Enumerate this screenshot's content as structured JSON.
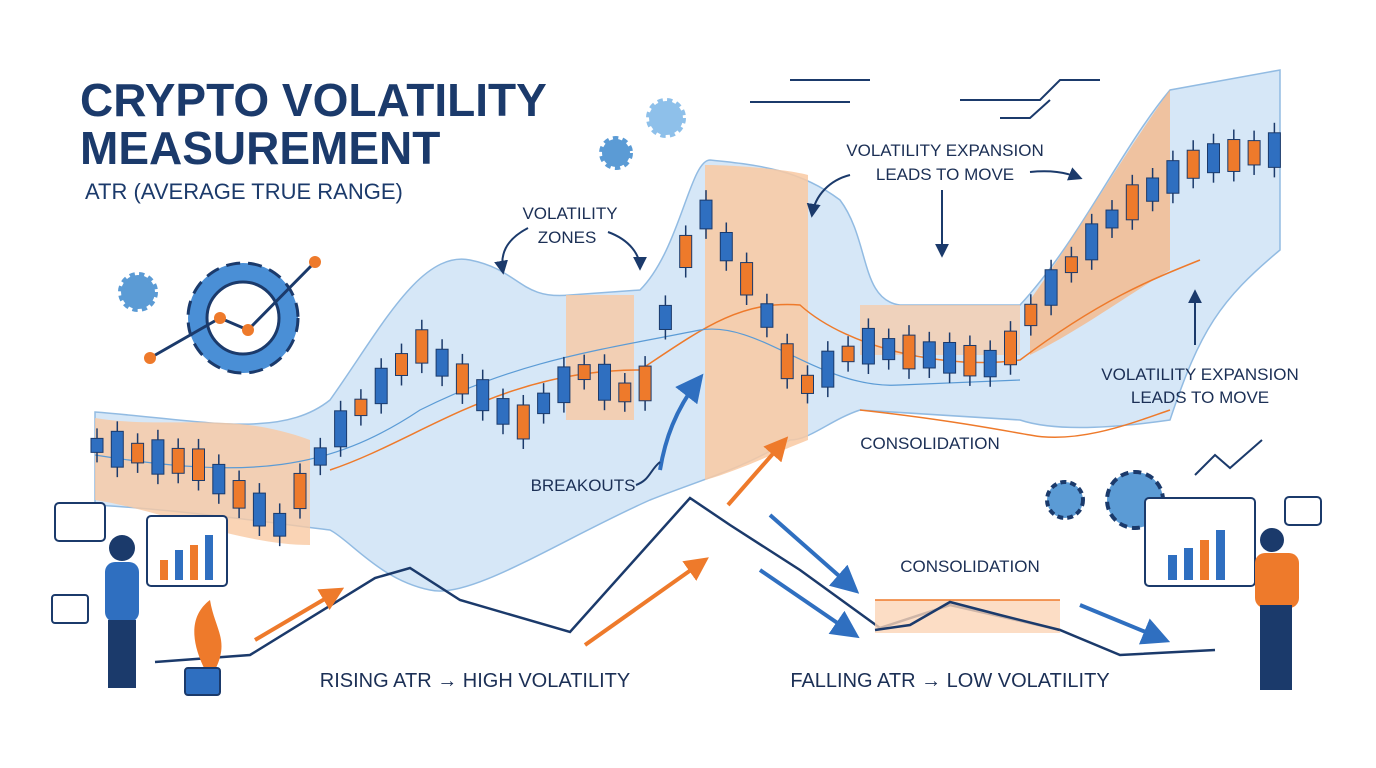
{
  "header": {
    "title_lines": [
      "CRYPTO VOLATILITY",
      "MEASUREMENT"
    ],
    "subtitle": "ATR (AVERAGE TRUE RANGE)"
  },
  "annotations": {
    "volatility_zones": [
      "VOLATILITY",
      "ZONES"
    ],
    "expansion_top": [
      "VOLATILITY EXPANSION",
      "LEADS TO MOVE"
    ],
    "expansion_right": [
      "VOLATILITY EXPANSION",
      "LEADS TO MOVE"
    ],
    "breakouts": "BREAKOUTS",
    "consolidation_upper": "CONSOLIDATION",
    "consolidation_lower": "CONSOLIDATION",
    "rising_atr": "RISING ATR → HIGH VOLATILITY",
    "falling_atr": "FALLING ATR → LOW VOLATILITY"
  }
}
